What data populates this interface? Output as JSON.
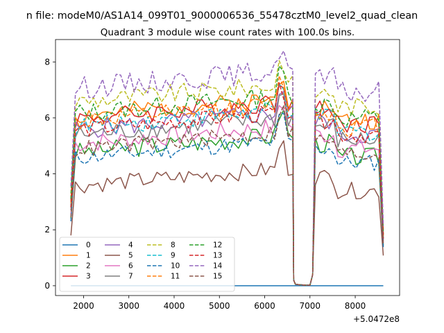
{
  "chart_data": {
    "type": "line",
    "suptitle": "n file: modeM0/AS1A14_099T01_9000006536_55478cztM0_level2_quad_clean",
    "title": "Quadrant 3 module wise count rates with 100.0s bins.",
    "xlabel": "",
    "ylabel": "",
    "x_offset_label": "+5.0472e8",
    "xlim": [
      1380,
      8980
    ],
    "ylim": [
      -0.35,
      8.8
    ],
    "xticks": [
      2000,
      3000,
      4000,
      5000,
      6000,
      7000,
      8000
    ],
    "xtick_labels": [
      "2000",
      "3000",
      "4000",
      "5000",
      "6000",
      "7000",
      "8000"
    ],
    "yticks": [
      0,
      2,
      4,
      6,
      8
    ],
    "ytick_labels": [
      "0",
      "2",
      "4",
      "6",
      "8"
    ],
    "gap": {
      "from": 6640,
      "to": 7110
    },
    "segment1": {
      "x_start": 1720,
      "x_end": 6620,
      "step": 100
    },
    "segment2": {
      "x_start": 7120,
      "x_end": 8620,
      "step": 100
    },
    "legend_position": "lower-left",
    "series": [
      {
        "name": "0",
        "color": "#1f77b4",
        "dashed": false,
        "level": 0.0,
        "amp": 0.0,
        "seed": 1,
        "zero": true
      },
      {
        "name": "1",
        "color": "#ff7f0e",
        "dashed": false,
        "level": 6.1,
        "amp": 0.35,
        "seed": 2
      },
      {
        "name": "2",
        "color": "#2ca02c",
        "dashed": false,
        "level": 4.8,
        "amp": 0.35,
        "seed": 3
      },
      {
        "name": "3",
        "color": "#d62728",
        "dashed": false,
        "level": 6.0,
        "amp": 0.35,
        "seed": 4
      },
      {
        "name": "4",
        "color": "#9467bd",
        "dashed": false,
        "level": 5.6,
        "amp": 0.35,
        "seed": 5
      },
      {
        "name": "5",
        "color": "#8c564b",
        "dashed": false,
        "level": 3.6,
        "amp": 0.3,
        "seed": 6
      },
      {
        "name": "6",
        "color": "#e377c2",
        "dashed": false,
        "level": 5.1,
        "amp": 0.35,
        "seed": 7
      },
      {
        "name": "7",
        "color": "#7f7f7f",
        "dashed": false,
        "level": 5.4,
        "amp": 0.35,
        "seed": 8
      },
      {
        "name": "8",
        "color": "#bcbd22",
        "dashed": true,
        "level": 6.6,
        "amp": 0.35,
        "seed": 9
      },
      {
        "name": "9",
        "color": "#17becf",
        "dashed": true,
        "level": 5.7,
        "amp": 0.35,
        "seed": 10
      },
      {
        "name": "10",
        "color": "#1f77b4",
        "dashed": true,
        "level": 4.6,
        "amp": 0.3,
        "seed": 11
      },
      {
        "name": "11",
        "color": "#ff7f0e",
        "dashed": true,
        "level": 5.9,
        "amp": 0.35,
        "seed": 12
      },
      {
        "name": "12",
        "color": "#2ca02c",
        "dashed": true,
        "level": 6.2,
        "amp": 0.35,
        "seed": 13
      },
      {
        "name": "13",
        "color": "#d62728",
        "dashed": true,
        "level": 5.6,
        "amp": 0.3,
        "seed": 14
      },
      {
        "name": "14",
        "color": "#9467bd",
        "dashed": true,
        "level": 7.1,
        "amp": 0.4,
        "seed": 15
      },
      {
        "name": "15",
        "color": "#8c564b",
        "dashed": true,
        "level": 4.9,
        "amp": 0.3,
        "seed": 16
      }
    ]
  }
}
